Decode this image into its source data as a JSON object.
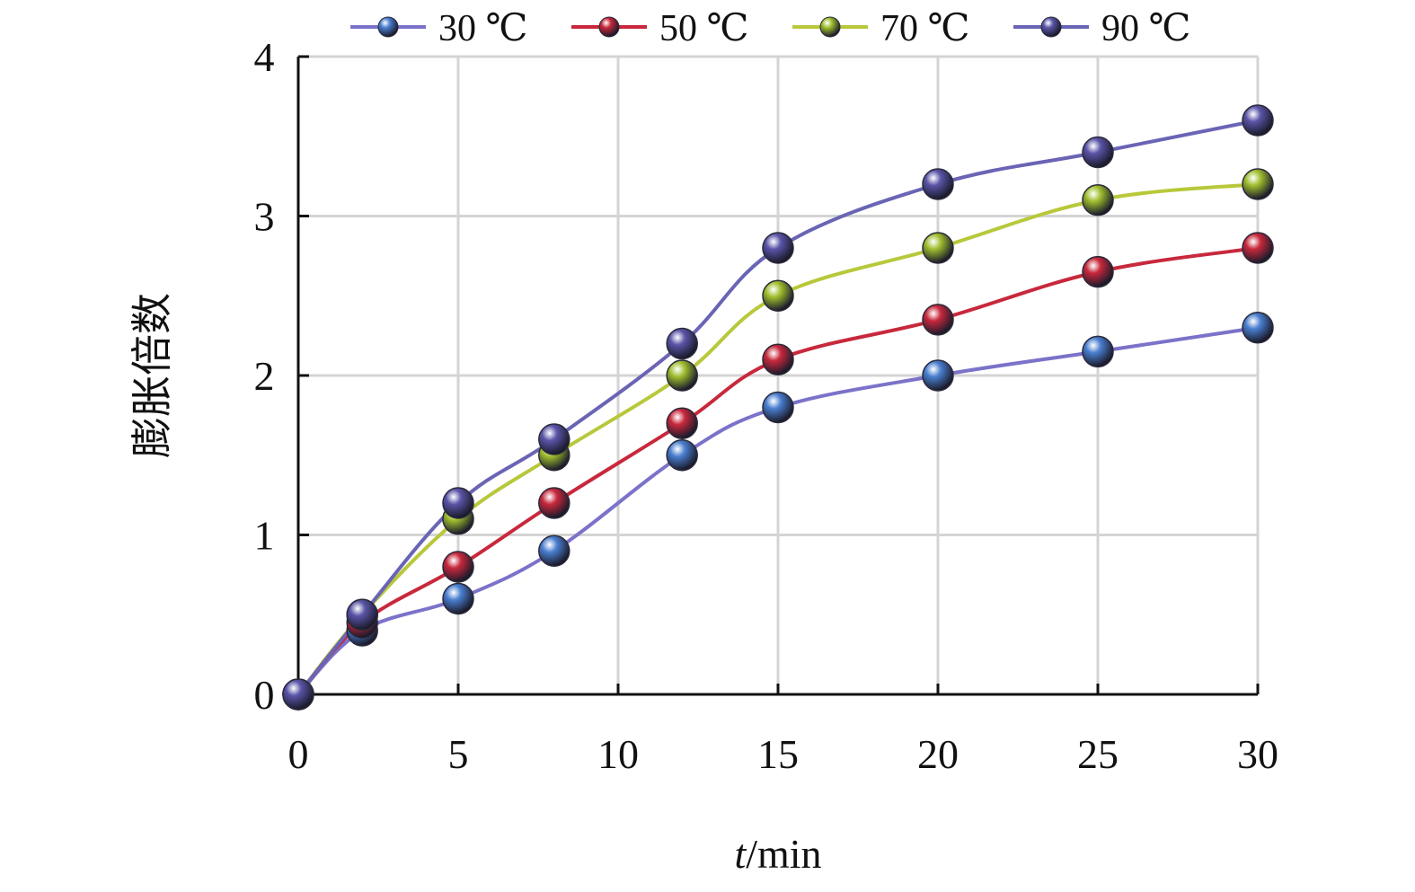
{
  "chart_data": {
    "type": "line",
    "title": "",
    "xlabel_italic": "t",
    "xlabel_rest": "/min",
    "ylabel": "膨胀倍数",
    "xlim": [
      0,
      30
    ],
    "ylim": [
      0,
      4
    ],
    "x_ticks": [
      "0",
      "5",
      "10",
      "15",
      "20",
      "25",
      "30"
    ],
    "y_ticks": [
      "0",
      "1",
      "2",
      "3",
      "4"
    ],
    "grid": true,
    "legend_position": "top",
    "x": [
      0,
      2,
      5,
      8,
      12,
      15,
      20,
      25,
      30
    ],
    "series": [
      {
        "name": "30 ℃",
        "color": "#4a7fd0",
        "line_color": "#7b72c9",
        "values": [
          0,
          0.4,
          0.6,
          0.9,
          1.5,
          1.8,
          2.0,
          2.15,
          2.3
        ]
      },
      {
        "name": "50 ℃",
        "color": "#c8283c",
        "line_color": "#c8283c",
        "values": [
          0,
          0.45,
          0.8,
          1.2,
          1.7,
          2.1,
          2.35,
          2.65,
          2.8
        ]
      },
      {
        "name": "70 ℃",
        "color": "#9fbf2e",
        "line_color": "#b8c83a",
        "values": [
          0,
          0.5,
          1.1,
          1.5,
          2.0,
          2.5,
          2.8,
          3.1,
          3.2
        ]
      },
      {
        "name": "90 ℃",
        "color": "#5a55a8",
        "line_color": "#6a64b5",
        "values": [
          0,
          0.5,
          1.2,
          1.6,
          2.2,
          2.8,
          3.2,
          3.4,
          3.6
        ]
      }
    ]
  }
}
